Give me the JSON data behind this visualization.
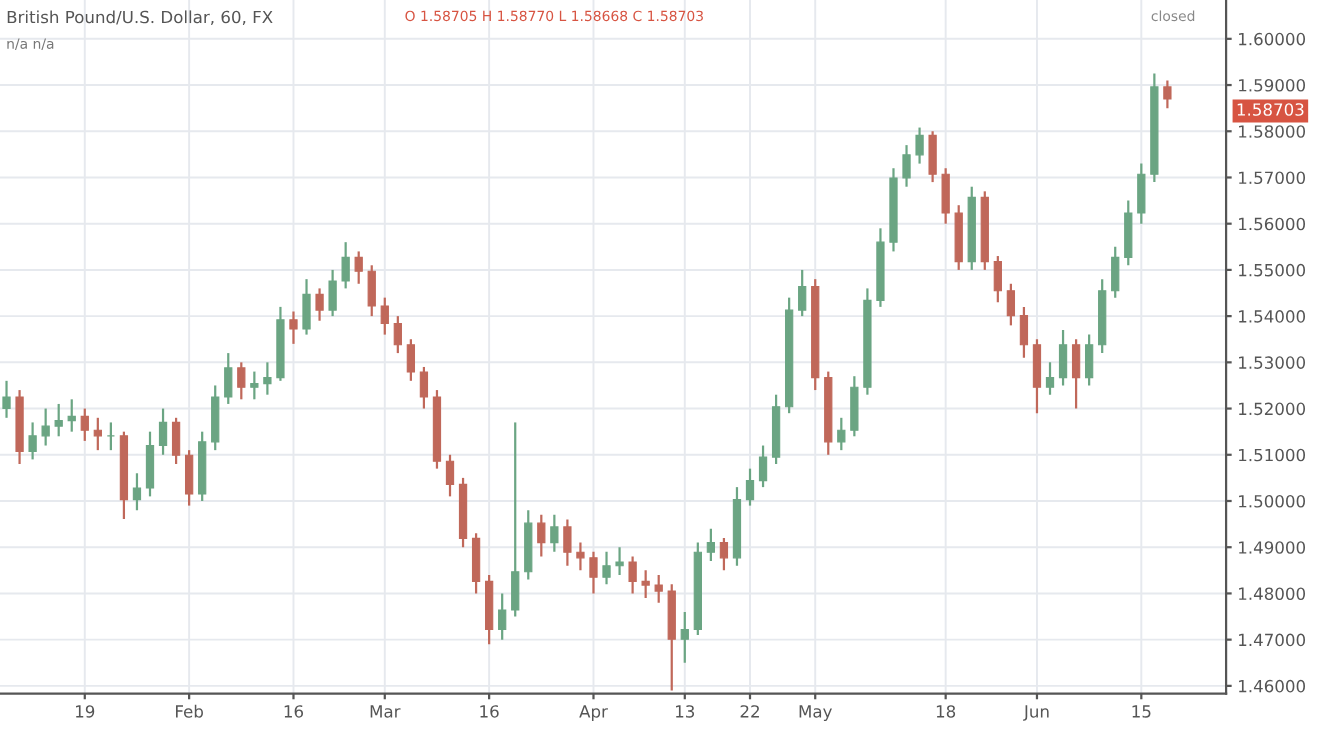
{
  "chart_data": {
    "type": "candlestick",
    "title": "British Pound/U.S. Dollar, 60, FX",
    "categories": [
      null,
      null,
      null,
      null,
      null,
      null,
      "19",
      null,
      null,
      null,
      null,
      null,
      null,
      null,
      "Feb",
      null,
      null,
      null,
      null,
      null,
      null,
      null,
      "16",
      null,
      null,
      null,
      null,
      null,
      null,
      "Mar",
      null,
      null,
      null,
      null,
      null,
      null,
      null,
      "16",
      null,
      null,
      null,
      null,
      null,
      null,
      null,
      "Apr",
      null,
      null,
      null,
      null,
      null,
      null,
      "13",
      null,
      null,
      null,
      null,
      "22",
      null,
      null,
      null,
      null,
      "May",
      null,
      null,
      null,
      null,
      null,
      null,
      null,
      null,
      null,
      "18",
      null,
      null,
      null,
      null,
      null,
      null,
      "Jun",
      null,
      null,
      null,
      null,
      null,
      null,
      null,
      "15",
      null,
      null,
      null,
      null,
      null,
      null
    ],
    "ohlc": [
      [
        1.52,
        1.526,
        1.518,
        1.5225
      ],
      [
        1.5225,
        1.524,
        1.508,
        1.5107
      ],
      [
        1.5107,
        1.517,
        1.509,
        1.5141
      ],
      [
        1.5141,
        1.52,
        1.512,
        1.5162
      ],
      [
        1.5162,
        1.521,
        1.514,
        1.5174
      ],
      [
        1.5174,
        1.522,
        1.515,
        1.5183
      ],
      [
        1.5183,
        1.52,
        1.513,
        1.5153
      ],
      [
        1.5153,
        1.518,
        1.511,
        1.5141
      ],
      [
        1.5141,
        1.517,
        1.511,
        1.5141
      ],
      [
        1.5141,
        1.515,
        1.4961,
        1.5003
      ],
      [
        1.5003,
        1.506,
        1.498,
        1.5028
      ],
      [
        1.5028,
        1.515,
        1.501,
        1.512
      ],
      [
        1.512,
        1.52,
        1.51,
        1.517
      ],
      [
        1.517,
        1.518,
        1.508,
        1.5099
      ],
      [
        1.5099,
        1.511,
        1.499,
        1.5015
      ],
      [
        1.5015,
        1.515,
        1.5,
        1.5128
      ],
      [
        1.5128,
        1.525,
        1.511,
        1.5225
      ],
      [
        1.5225,
        1.532,
        1.521,
        1.5288
      ],
      [
        1.5288,
        1.53,
        1.522,
        1.5246
      ],
      [
        1.5246,
        1.528,
        1.522,
        1.5254
      ],
      [
        1.5254,
        1.53,
        1.523,
        1.5267
      ],
      [
        1.5267,
        1.542,
        1.526,
        1.5392
      ],
      [
        1.5392,
        1.541,
        1.534,
        1.5372
      ],
      [
        1.5372,
        1.548,
        1.536,
        1.5447
      ],
      [
        1.5447,
        1.546,
        1.539,
        1.5413
      ],
      [
        1.5413,
        1.55,
        1.54,
        1.5476
      ],
      [
        1.5476,
        1.556,
        1.546,
        1.5527
      ],
      [
        1.5527,
        1.554,
        1.547,
        1.5497
      ],
      [
        1.5497,
        1.551,
        1.54,
        1.5422
      ],
      [
        1.5422,
        1.544,
        1.536,
        1.5384
      ],
      [
        1.5384,
        1.54,
        1.532,
        1.5338
      ],
      [
        1.5338,
        1.535,
        1.526,
        1.5279
      ],
      [
        1.5279,
        1.529,
        1.52,
        1.5225
      ],
      [
        1.5225,
        1.524,
        1.507,
        1.5086
      ],
      [
        1.5086,
        1.51,
        1.501,
        1.5036
      ],
      [
        1.5036,
        1.505,
        1.49,
        1.4919
      ],
      [
        1.4919,
        1.493,
        1.48,
        1.4826
      ],
      [
        1.4826,
        1.484,
        1.469,
        1.4722
      ],
      [
        1.4722,
        1.48,
        1.47,
        1.4764
      ],
      [
        1.4764,
        1.517,
        1.475,
        1.4847
      ],
      [
        1.4847,
        1.498,
        1.483,
        1.4952
      ],
      [
        1.4952,
        1.497,
        1.488,
        1.491
      ],
      [
        1.491,
        1.497,
        1.489,
        1.4944
      ],
      [
        1.4944,
        1.496,
        1.486,
        1.4889
      ],
      [
        1.4889,
        1.491,
        1.485,
        1.4877
      ],
      [
        1.4877,
        1.489,
        1.48,
        1.4835
      ],
      [
        1.4835,
        1.489,
        1.482,
        1.486
      ],
      [
        1.486,
        1.49,
        1.484,
        1.4868
      ],
      [
        1.4868,
        1.488,
        1.48,
        1.4826
      ],
      [
        1.4826,
        1.485,
        1.479,
        1.4818
      ],
      [
        1.4818,
        1.484,
        1.478,
        1.4805
      ],
      [
        1.4805,
        1.482,
        1.459,
        1.4701
      ],
      [
        1.4701,
        1.476,
        1.465,
        1.4722
      ],
      [
        1.4722,
        1.491,
        1.471,
        1.4889
      ],
      [
        1.4889,
        1.494,
        1.487,
        1.491
      ],
      [
        1.491,
        1.492,
        1.485,
        1.4877
      ],
      [
        1.4877,
        1.503,
        1.486,
        1.5003
      ],
      [
        1.5003,
        1.507,
        1.499,
        1.5044
      ],
      [
        1.5044,
        1.512,
        1.503,
        1.5095
      ],
      [
        1.5095,
        1.523,
        1.508,
        1.5204
      ],
      [
        1.5204,
        1.544,
        1.519,
        1.5413
      ],
      [
        1.5413,
        1.55,
        1.54,
        1.5464
      ],
      [
        1.5464,
        1.548,
        1.524,
        1.5267
      ],
      [
        1.5267,
        1.528,
        1.51,
        1.5128
      ],
      [
        1.5128,
        1.518,
        1.511,
        1.5153
      ],
      [
        1.5153,
        1.527,
        1.514,
        1.5246
      ],
      [
        1.5246,
        1.546,
        1.523,
        1.5434
      ],
      [
        1.5434,
        1.559,
        1.542,
        1.556
      ],
      [
        1.556,
        1.572,
        1.554,
        1.5699
      ],
      [
        1.5699,
        1.577,
        1.568,
        1.5749
      ],
      [
        1.5749,
        1.5808,
        1.573,
        1.5791
      ],
      [
        1.5791,
        1.58,
        1.569,
        1.5707
      ],
      [
        1.5707,
        1.572,
        1.56,
        1.5623
      ],
      [
        1.5623,
        1.564,
        1.55,
        1.5518
      ],
      [
        1.5518,
        1.568,
        1.55,
        1.5657
      ],
      [
        1.5657,
        1.567,
        1.55,
        1.5518
      ],
      [
        1.5518,
        1.553,
        1.543,
        1.5455
      ],
      [
        1.5455,
        1.547,
        1.538,
        1.5401
      ],
      [
        1.5401,
        1.542,
        1.531,
        1.5338
      ],
      [
        1.5338,
        1.535,
        1.519,
        1.5246
      ],
      [
        1.5246,
        1.53,
        1.523,
        1.5267
      ],
      [
        1.5267,
        1.537,
        1.525,
        1.5338
      ],
      [
        1.5338,
        1.535,
        1.52,
        1.5267
      ],
      [
        1.5267,
        1.536,
        1.525,
        1.5338
      ],
      [
        1.5338,
        1.548,
        1.532,
        1.5455
      ],
      [
        1.5455,
        1.555,
        1.544,
        1.5527
      ],
      [
        1.5527,
        1.565,
        1.551,
        1.5623
      ],
      [
        1.5623,
        1.573,
        1.56,
        1.5707
      ],
      [
        1.5707,
        1.5925,
        1.569,
        1.5896
      ],
      [
        1.5896,
        1.591,
        1.585,
        1.587
      ],
      null,
      null,
      null,
      null
    ],
    "ylim": [
      1.4583,
      1.6084
    ],
    "yticks": [
      {
        "value": 1.46,
        "label": "1.46000"
      },
      {
        "value": 1.47,
        "label": "1.47000"
      },
      {
        "value": 1.48,
        "label": "1.48000"
      },
      {
        "value": 1.49,
        "label": "1.49000"
      },
      {
        "value": 1.5,
        "label": "1.50000"
      },
      {
        "value": 1.51,
        "label": "1.51000"
      },
      {
        "value": 1.52,
        "label": "1.52000"
      },
      {
        "value": 1.53,
        "label": "1.53000"
      },
      {
        "value": 1.54,
        "label": "1.54000"
      },
      {
        "value": 1.55,
        "label": "1.55000"
      },
      {
        "value": 1.56,
        "label": "1.56000"
      },
      {
        "value": 1.57,
        "label": "1.57000"
      },
      {
        "value": 1.58,
        "label": "1.58000"
      },
      {
        "value": 1.59,
        "label": "1.59000"
      },
      {
        "value": 1.6,
        "label": "1.60000"
      }
    ],
    "grid": true,
    "annotations": [
      "O 1.58705 H 1.58770 L 1.58668 C 1.58703",
      "n/a n/a",
      "closed",
      "1.58703"
    ]
  }
}
